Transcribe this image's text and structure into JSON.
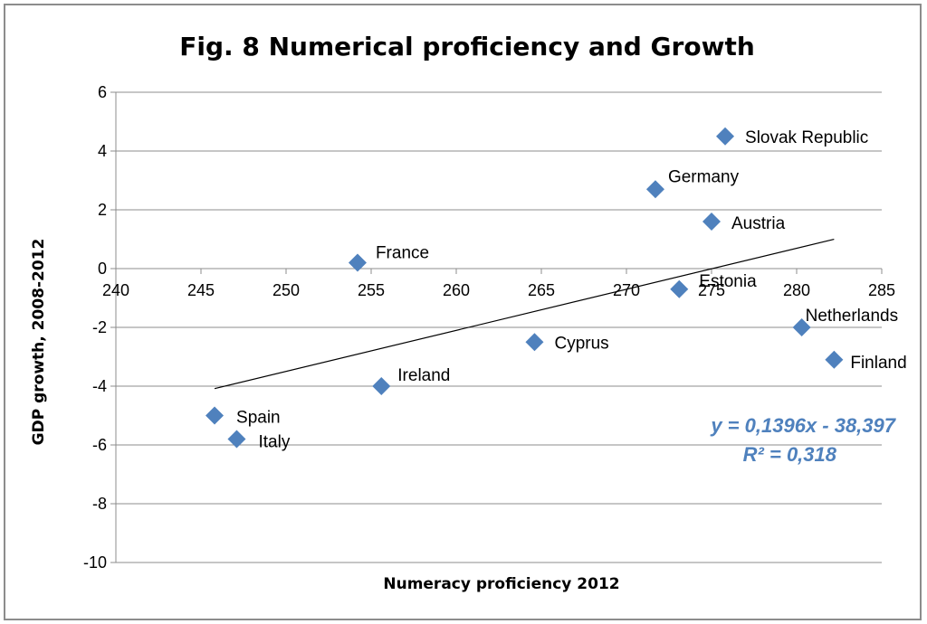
{
  "chart_data": {
    "type": "scatter",
    "title": "Fig. 8 Numerical proficiency and Growth",
    "xlabel": "Numeracy proficiency 2012",
    "ylabel": "GDP growth, 2008-2012",
    "xlim": [
      240,
      285
    ],
    "ylim": [
      -10,
      6
    ],
    "xticks": [
      240,
      245,
      250,
      255,
      260,
      265,
      270,
      275,
      280,
      285
    ],
    "yticks": [
      -10,
      -8,
      -6,
      -4,
      -2,
      0,
      2,
      4,
      6
    ],
    "grid": "horizontal",
    "marker_color": "#4f81bd",
    "trend_color": "#000000",
    "points": [
      {
        "label": "Slovak Republic",
        "x": 275.8,
        "y": 4.5
      },
      {
        "label": "Germany",
        "x": 271.7,
        "y": 2.7
      },
      {
        "label": "Austria",
        "x": 275.0,
        "y": 1.6
      },
      {
        "label": "France",
        "x": 254.2,
        "y": 0.2
      },
      {
        "label": "Estonia",
        "x": 273.1,
        "y": -0.7
      },
      {
        "label": "Netherlands",
        "x": 280.3,
        "y": -2.0
      },
      {
        "label": "Finland",
        "x": 282.2,
        "y": -3.1
      },
      {
        "label": "Cyprus",
        "x": 264.6,
        "y": -2.5
      },
      {
        "label": "Ireland",
        "x": 255.6,
        "y": -4.0
      },
      {
        "label": "Spain",
        "x": 245.8,
        "y": -5.0
      },
      {
        "label": "Italy",
        "x": 247.1,
        "y": -5.8
      }
    ],
    "trendline": {
      "slope": 0.1396,
      "intercept": -38.397,
      "x_start": 245.8,
      "x_end": 282.2,
      "equation": "y = 0,1396x - 38,397",
      "r_squared": "R² = 0,318"
    }
  }
}
